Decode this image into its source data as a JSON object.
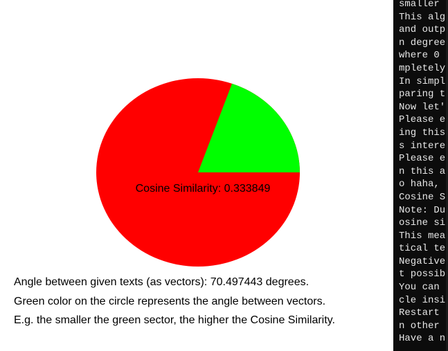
{
  "app": {
    "cosine_label": "Cosine Similarity: 0.333849",
    "cosine_similarity": 0.333849,
    "angle_degrees": 70.497443,
    "colors": {
      "sector": "#00ff00",
      "circle": "#ff0000",
      "background": "#ffffff"
    },
    "lines": [
      "Angle between given texts (as vectors): 70.497443 degrees.",
      "Green color on the circle represents the angle between vectors.",
      "E.g. the smaller the green sector, the higher the Cosine Similarity."
    ]
  },
  "console": {
    "colors": {
      "background": "#0c0c0c",
      "text": "#e6e6e6"
    },
    "lines": [
      "smaller",
      "This alg",
      "and outp",
      "n degree",
      "where 0 ",
      "mpletely",
      "In simpl",
      "paring t",
      "Now let'",
      "Please e",
      "ing this",
      "s intere",
      "Please e",
      "n this a",
      "o haha, ",
      "Cosine S",
      "Note: Du",
      "osine si",
      "This mea",
      "tical te",
      "Negative",
      "t possib",
      "You can ",
      "cle insi",
      "Restart ",
      "n other ",
      "Have a n"
    ]
  }
}
